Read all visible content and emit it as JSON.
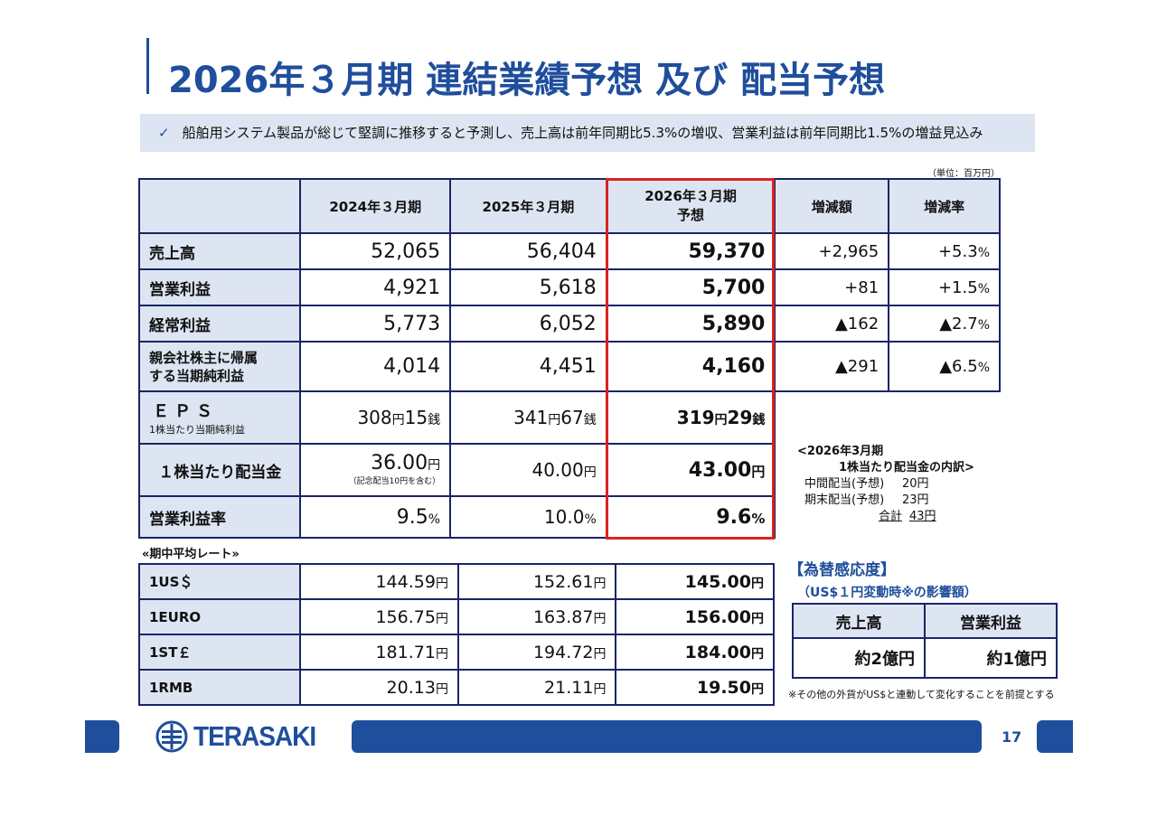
{
  "title": "2026年３月期 連結業績予想 及び 配当予想",
  "summary": {
    "check": "✓",
    "text": "船舶用システム製品が総じて堅調に推移すると予測し、売上高は前年同期比5.3%の増収、営業利益は前年同期比1.5%の増益見込み"
  },
  "unit_note": "（単位：百万円）",
  "headers": {
    "fy2024": "2024年３月期",
    "fy2025": "2025年３月期",
    "fy2026_line1": "2026年３月期",
    "fy2026_line2": "予想",
    "change": "増減額",
    "rate": "増減率"
  },
  "rows": {
    "sales": {
      "label": "売上高",
      "v2024": "52,065",
      "v2025": "56,404",
      "v2026": "59,370",
      "change": "+2,965",
      "rate": "+5.3",
      "pct": "%"
    },
    "op": {
      "label": "営業利益",
      "v2024": "4,921",
      "v2025": "5,618",
      "v2026": "5,700",
      "change": "+81",
      "rate": "+1.5",
      "pct": "%"
    },
    "ord": {
      "label": "経常利益",
      "v2024": "5,773",
      "v2025": "6,052",
      "v2026": "5,890",
      "change": "▲162",
      "rate": "▲2.7",
      "pct": "%"
    },
    "net": {
      "label1": "親会社株主に帰属",
      "label2": "する当期純利益",
      "v2024": "4,014",
      "v2025": "4,451",
      "v2026": "4,160",
      "change": "▲291",
      "rate": "▲6.5",
      "pct": "%"
    },
    "eps": {
      "label": "ＥＰＳ",
      "sublabel": "1株当たり当期純利益",
      "v2024": {
        "yen": "308",
        "yen_unit": "円",
        "sen": "15",
        "sen_unit": "銭"
      },
      "v2025": {
        "yen": "341",
        "yen_unit": "円",
        "sen": "67",
        "sen_unit": "銭"
      },
      "v2026": {
        "yen": "319",
        "yen_unit": "円",
        "sen": "29",
        "sen_unit": "銭"
      }
    },
    "dps": {
      "label": "１株当たり配当金",
      "v2024": "36.00",
      "v2024_note": "（記念配当10円を含む）",
      "v2025": "40.00",
      "v2026": "43.00",
      "unit": "円"
    },
    "margin": {
      "label": "営業利益率",
      "v2024": "9.5",
      "v2025": "10.0",
      "v2026": "9.6",
      "pct": "%"
    }
  },
  "breakdown": {
    "h1": "<2026年3月期",
    "h2": "1株当たり配当金の内訳>",
    "interim_label": "中間配当(予想)",
    "interim_value": "20円",
    "final_label": "期末配当(予想)",
    "final_value": "23円",
    "total_label": "合計",
    "total_value": "43円"
  },
  "rates": {
    "caption": "«期中平均レート»",
    "unit": "円",
    "items": [
      {
        "label": "1US＄",
        "v2024": "144.59",
        "v2025": "152.61",
        "v2026": "145.00"
      },
      {
        "label": "1EURO",
        "v2024": "156.75",
        "v2025": "163.87",
        "v2026": "156.00"
      },
      {
        "label": "1ST￡",
        "v2024": "181.71",
        "v2025": "194.72",
        "v2026": "184.00"
      },
      {
        "label": "1RMB",
        "v2024": "20.13",
        "v2025": "21.11",
        "v2026": "19.50"
      }
    ]
  },
  "fx": {
    "title": "【為替感応度】",
    "subtitle": "（US$１円変動時※の影響額）",
    "h_sales": "売上高",
    "h_op": "営業利益",
    "v_sales": "約2億円",
    "v_op": "約1億円",
    "note": "※その他の外貨がUS$と連動して変化することを前提とする"
  },
  "footer": {
    "company": "TERASAKI",
    "page": "17"
  },
  "colors": {
    "brand": "#1f4e9c",
    "highlight": "#d9231f",
    "header_bg": "#dde5f2"
  }
}
